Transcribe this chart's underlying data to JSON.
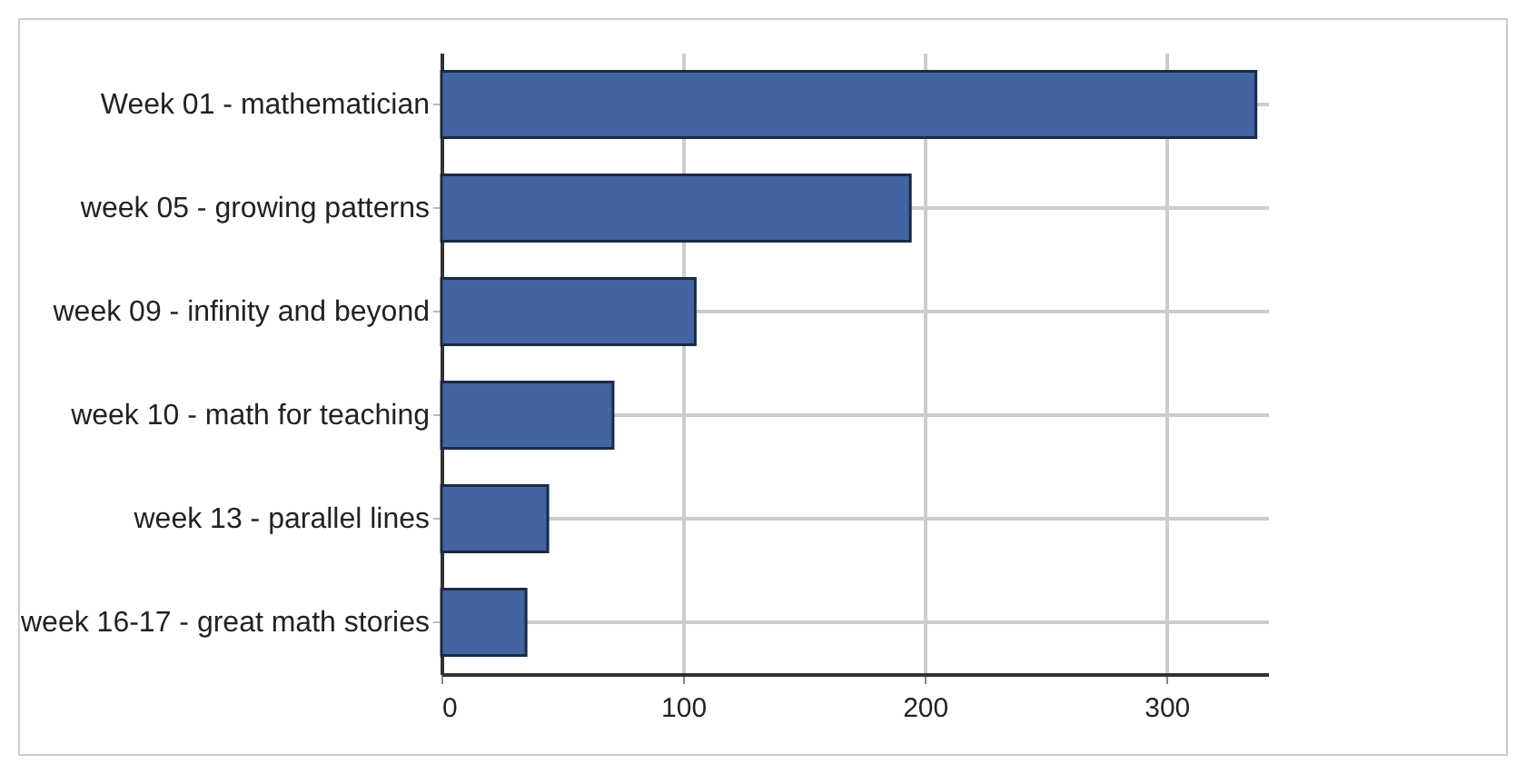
{
  "chart_data": {
    "type": "bar",
    "orientation": "horizontal",
    "categories": [
      "Week 01 - mathematician",
      "week 05 - growing patterns",
      "week 09 - infinity and beyond",
      "week 10 - math for teaching",
      "week 13 - parallel lines",
      "week 16-17 - great math stories"
    ],
    "values": [
      337,
      194,
      105,
      71,
      44,
      35
    ],
    "color": "#4264a1",
    "xlim": [
      0,
      342
    ],
    "xticks": [
      0,
      100,
      200,
      300
    ],
    "grid": true
  }
}
